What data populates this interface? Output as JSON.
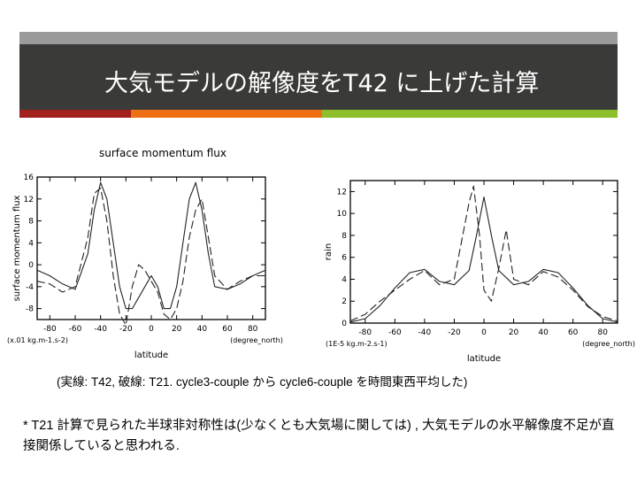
{
  "slide": {
    "title": "大気モデルの解像度をT42 に上げた計算",
    "caption": "(実線: T42, 破線: T21. cycle3-couple から cycle6-couple を時間東西平均した)",
    "note": "* T21 計算で見られた半球非対称性は(少なくとも大気場に関しては) , 大気モデルの水平解像度不足が直接関係していると思われる."
  },
  "colors": {
    "titlebar": "#3a3a38",
    "topbar": "#9a9a9a",
    "stripe1": "#a3211c",
    "stripe2": "#ee6f14",
    "stripe3": "#8ec02c"
  },
  "chart_data": [
    {
      "type": "line",
      "title": "surface momentum flux",
      "xlabel": "latitude",
      "ylabel": "surface momentum flux",
      "xunit": "(degree_north)",
      "yunit": "(x.01 kg.m-1.s-2)",
      "xlim": [
        -90,
        90
      ],
      "ylim": [
        -10,
        16
      ],
      "xticks": [
        -80,
        -60,
        -40,
        -20,
        0,
        20,
        40,
        60,
        80
      ],
      "yticks": [
        -8,
        -4,
        0,
        4,
        8,
        12,
        16
      ],
      "series": [
        {
          "style": "solid",
          "x": [
            -90,
            -80,
            -70,
            -60,
            -50,
            -45,
            -40,
            -35,
            -30,
            -25,
            -20,
            -15,
            -10,
            -5,
            0,
            5,
            10,
            15,
            20,
            25,
            30,
            35,
            40,
            45,
            50,
            60,
            70,
            80,
            90
          ],
          "y": [
            -1,
            -2,
            -3.5,
            -4.5,
            2,
            10,
            15,
            12,
            4,
            -4,
            -8,
            -8,
            -6,
            -4,
            -2,
            -4,
            -8,
            -8,
            -4,
            4,
            12,
            15,
            10,
            2,
            -4,
            -4.5,
            -3.5,
            -2,
            -1
          ]
        },
        {
          "style": "dashed",
          "x": [
            -90,
            -80,
            -70,
            -60,
            -50,
            -45,
            -40,
            -35,
            -30,
            -25,
            -20,
            -15,
            -10,
            -5,
            0,
            5,
            10,
            15,
            20,
            25,
            30,
            35,
            40,
            45,
            50,
            60,
            70,
            80,
            90
          ],
          "y": [
            -3,
            -3.5,
            -5,
            -4,
            5,
            13,
            14,
            8,
            -2,
            -9,
            -11,
            -4,
            0,
            -1,
            -3,
            -5,
            -9,
            -10,
            -8,
            -3,
            5,
            10,
            12,
            5,
            -2,
            -4.5,
            -3,
            -2,
            -2
          ]
        }
      ]
    },
    {
      "type": "line",
      "title": "",
      "xlabel": "latitude",
      "ylabel": "rain",
      "xunit": "(degree_north)",
      "yunit": "(1E-5 kg.m-2.s-1)",
      "xlim": [
        -90,
        90
      ],
      "ylim": [
        0,
        13
      ],
      "xticks": [
        -80,
        -60,
        -40,
        -20,
        0,
        20,
        40,
        60,
        80
      ],
      "yticks": [
        0,
        2,
        4,
        6,
        8,
        10,
        12
      ],
      "series": [
        {
          "style": "solid",
          "x": [
            -90,
            -80,
            -70,
            -60,
            -50,
            -40,
            -30,
            -20,
            -10,
            -5,
            0,
            5,
            10,
            20,
            30,
            40,
            50,
            60,
            70,
            80,
            90
          ],
          "y": [
            0.1,
            0.4,
            1.6,
            3.2,
            4.6,
            4.9,
            3.8,
            3.5,
            4.8,
            8,
            11.5,
            8,
            4.8,
            3.5,
            3.8,
            4.9,
            4.6,
            3.2,
            1.6,
            0.4,
            0.1
          ]
        },
        {
          "style": "dashed",
          "x": [
            -90,
            -80,
            -70,
            -60,
            -50,
            -40,
            -30,
            -20,
            -10,
            -7,
            -3,
            0,
            5,
            10,
            15,
            20,
            30,
            40,
            50,
            60,
            70,
            80,
            90
          ],
          "y": [
            0.2,
            0.8,
            2,
            3,
            4,
            4.8,
            3.5,
            4,
            11,
            12.5,
            8,
            3,
            2,
            5,
            8.5,
            4,
            3.5,
            4.7,
            4.2,
            3,
            1.5,
            0.6,
            0.2
          ]
        }
      ]
    }
  ]
}
